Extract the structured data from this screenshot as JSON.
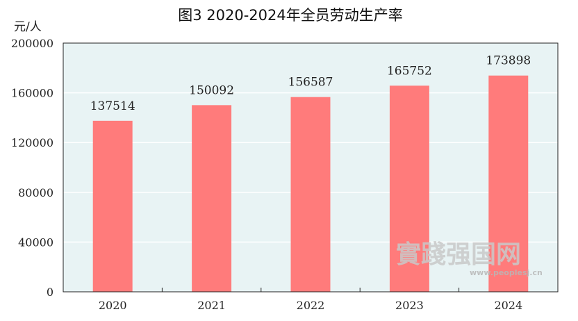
{
  "chart_data": {
    "type": "bar",
    "title": "图3   2020-2024年全员劳动生产率",
    "ylabel": "元/人",
    "xlabel": "",
    "categories": [
      "2020",
      "2021",
      "2022",
      "2023",
      "2024"
    ],
    "values": [
      137514,
      150092,
      156587,
      165752,
      173898
    ],
    "ylim": [
      0,
      200000
    ],
    "yticks": [
      0,
      40000,
      80000,
      120000,
      160000,
      200000
    ],
    "grid": true,
    "legend": "none"
  },
  "colors": {
    "bar": "#ff7b7b",
    "plot_background": "#e8f3f4",
    "gridline": "#ffffff",
    "axis": "#222222"
  },
  "watermark": {
    "logo_text": "實踐强国网",
    "url": "www.peoplesj.cn"
  }
}
